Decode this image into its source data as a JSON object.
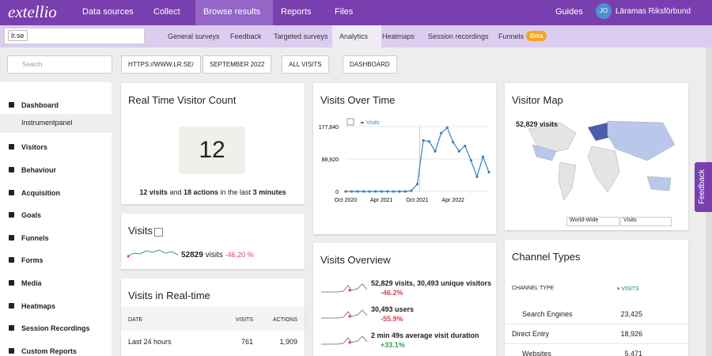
{
  "nav": {
    "brand": "extellio",
    "items": [
      "Data sources",
      "Collect",
      "Browse results",
      "Reports",
      "Files"
    ],
    "active": 2,
    "guides": "Guides",
    "initials": "JO",
    "user": "Läramas Riksförbund"
  },
  "subnav": {
    "filter": "lr.se",
    "tabs": [
      "General surveys",
      "Feedback",
      "Targeted surveys",
      "Analytics",
      "Heatmaps",
      "Session recordings",
      "Funnels"
    ],
    "active": 3,
    "beta": "Beta"
  },
  "toolbar": {
    "search": "Search",
    "buttons": [
      "HTTPS://WWW.LR.SE/",
      "SEPTEMBER 2022",
      "ALL VISITS",
      "DASHBOARD"
    ]
  },
  "sidebar": {
    "items": [
      "Dashboard",
      "Visitors",
      "Behaviour",
      "Acquisition",
      "Goals",
      "Funnels",
      "Forms",
      "Media",
      "Heatmaps",
      "Session Recordings",
      "Custom Reports"
    ],
    "sub": "Instrumentpanel"
  },
  "realtime": {
    "title": "Real Time Visitor Count",
    "value": "12",
    "summary": [
      "12 visits",
      "and",
      "18 actions",
      "in the last",
      "3 minutes"
    ]
  },
  "visits": {
    "title": "Visits",
    "value": "52829",
    "unit": "visits",
    "change": "-46.20 %"
  },
  "realtime_table": {
    "title": "Visits in Real-time",
    "headers": [
      "DATE",
      "VISITS",
      "ACTIONS"
    ],
    "rows": [
      [
        "Last 24 hours",
        "761",
        "1,909"
      ]
    ]
  },
  "visits_over_time": {
    "title": "Visits Over Time",
    "legend": "Visits",
    "categories": [
      "Oct 2020",
      null,
      null,
      null,
      null,
      null,
      "Apr 2021",
      null,
      null,
      null,
      null,
      null,
      "Oct 2021",
      null,
      null,
      null,
      null,
      null,
      "Apr 2022",
      null,
      null,
      null,
      null,
      null,
      null
    ],
    "values": [
      0,
      0,
      0,
      0,
      0,
      0,
      0,
      0,
      0,
      0,
      0,
      2000,
      20000,
      140000,
      137000,
      110000,
      160000,
      175000,
      135000,
      110000,
      125000,
      85000,
      40000,
      95000,
      52829
    ],
    "ylim": [
      0,
      177840
    ],
    "yticks": [
      0,
      {
        "value": 88920,
        "label": "88,920"
      },
      {
        "value": 177840,
        "label": "177,840"
      }
    ],
    "color": "#3a7fc0"
  },
  "overview": {
    "title": "Visits Overview",
    "rows": [
      {
        "text": "52,829 visits, 30,493 unique visitors",
        "change": "-46.2%"
      },
      {
        "text": "30,493 users",
        "change": "-55.9%"
      },
      {
        "text": "2 min 49s average visit duration",
        "change": "+33.1%"
      }
    ]
  },
  "map": {
    "title": "Visitor Map",
    "label": "52,829 visits",
    "selects": [
      "World-Wide",
      "Visits"
    ]
  },
  "channels": {
    "title": "Channel Types",
    "headers": [
      "CHANNEL TYPE",
      "VISITS"
    ],
    "rows": [
      [
        "Search Engines",
        "23,425"
      ],
      [
        "Direct Entry",
        "18,926"
      ],
      [
        "Websites",
        "5,471"
      ]
    ]
  },
  "feedback_tab": "Feedback"
}
